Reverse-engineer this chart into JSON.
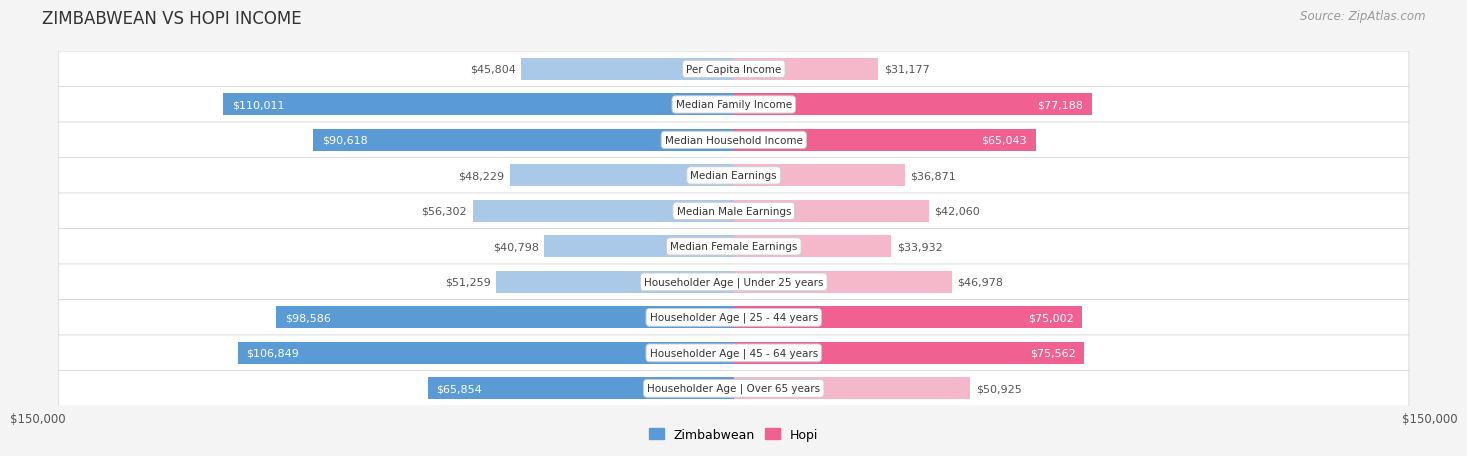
{
  "title": "ZIMBABWEAN VS HOPI INCOME",
  "source": "Source: ZipAtlas.com",
  "categories": [
    "Per Capita Income",
    "Median Family Income",
    "Median Household Income",
    "Median Earnings",
    "Median Male Earnings",
    "Median Female Earnings",
    "Householder Age | Under 25 years",
    "Householder Age | 25 - 44 years",
    "Householder Age | 45 - 64 years",
    "Householder Age | Over 65 years"
  ],
  "zimbabwean_values": [
    45804,
    110011,
    90618,
    48229,
    56302,
    40798,
    51259,
    98586,
    106849,
    65854
  ],
  "hopi_values": [
    31177,
    77188,
    65043,
    36871,
    42060,
    33932,
    46978,
    75002,
    75562,
    50925
  ],
  "zimbabwean_labels": [
    "$45,804",
    "$110,011",
    "$90,618",
    "$48,229",
    "$56,302",
    "$40,798",
    "$51,259",
    "$98,586",
    "$106,849",
    "$65,854"
  ],
  "hopi_labels": [
    "$31,177",
    "$77,188",
    "$65,043",
    "$36,871",
    "$42,060",
    "$33,932",
    "$46,978",
    "$75,002",
    "$75,562",
    "$50,925"
  ],
  "max_value": 150000,
  "zim_dark_threshold": 65000,
  "hopi_dark_threshold": 65000,
  "zimbabwean_color_light": "#aac9e8",
  "zimbabwean_color_dark": "#5b9bd5",
  "hopi_color_light": "#f5b8cb",
  "hopi_color_dark": "#f06090",
  "label_outside_color": "#555555",
  "label_inside_color": "#ffffff",
  "background_color": "#f4f4f4",
  "row_bg_color": "#ffffff",
  "row_border_color": "#d8d8d8",
  "title_fontsize": 12,
  "source_fontsize": 8.5,
  "bar_label_fontsize": 8,
  "category_fontsize": 7.5,
  "axis_label_fontsize": 8.5
}
